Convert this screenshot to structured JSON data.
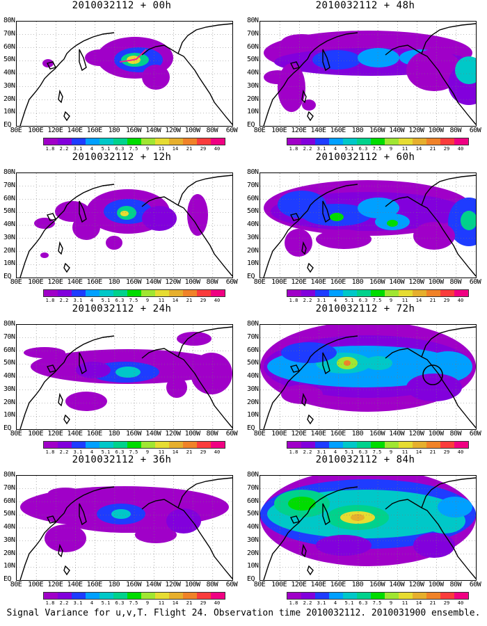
{
  "colorbar": {
    "labels": [
      "1.8",
      "2.2",
      "3.1",
      "4",
      "5.1",
      "6.3",
      "7.5",
      "9",
      "11",
      "14",
      "21",
      "29",
      "40"
    ],
    "colors": [
      "#a000c8",
      "#8200dc",
      "#1e3cff",
      "#00a0ff",
      "#00c8c8",
      "#00d28c",
      "#00dc00",
      "#a0e632",
      "#e6dc32",
      "#e6af2d",
      "#f08228",
      "#fa3c3c",
      "#f00082"
    ]
  },
  "lat_labels": [
    "80N",
    "70N",
    "60N",
    "50N",
    "40N",
    "30N",
    "20N",
    "10N",
    "EQ"
  ],
  "lon_labels": [
    "80E",
    "100E",
    "120E",
    "140E",
    "160E",
    "180",
    "160W",
    "140W",
    "120W",
    "100W",
    "80W",
    "60W"
  ],
  "panels": [
    {
      "title": "2010032112 + 00h"
    },
    {
      "title": "2010032112 + 48h"
    },
    {
      "title": "2010032112 + 12h"
    },
    {
      "title": "2010032112 + 60h"
    },
    {
      "title": "2010032112 + 24h"
    },
    {
      "title": "2010032112 + 72h"
    },
    {
      "title": "2010032112 + 36h"
    },
    {
      "title": "2010032112 + 84h"
    }
  ],
  "caption": "Signal Variance for u,v,T. Flight 24. Observation time 2010032112. 2010031900 ensemble."
}
